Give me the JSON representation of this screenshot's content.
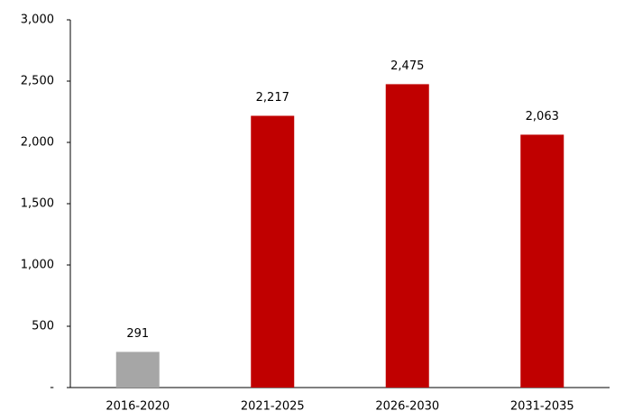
{
  "chart_data": {
    "type": "bar",
    "categories": [
      "2016-2020",
      "2021-2025",
      "2026-2030",
      "2031-2035"
    ],
    "values": [
      291,
      2217,
      2475,
      2063
    ],
    "value_labels": [
      "291",
      "2,217",
      "2,475",
      "2,063"
    ],
    "colors": [
      "#a6a6a6",
      "#c00000",
      "#c00000",
      "#c00000"
    ],
    "ylim": [
      0,
      3000
    ],
    "yticks": [
      {
        "value": 0,
        "label": "-"
      },
      500,
      {
        "value": 1000,
        "label": "1,000"
      },
      {
        "value": 1500,
        "label": "1,500"
      },
      {
        "value": 2000,
        "label": "2,000"
      },
      {
        "value": 2500,
        "label": "2,500"
      },
      {
        "value": 3000,
        "label": "3,000"
      }
    ],
    "grid": false
  }
}
